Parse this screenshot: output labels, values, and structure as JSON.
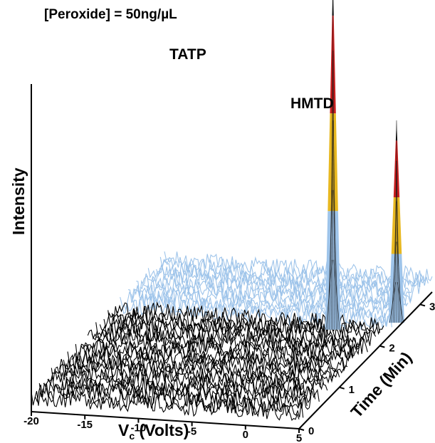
{
  "chart_data": {
    "type": "surface3d",
    "subtitle": "[Peroxide] = 50ng/µL",
    "xlabel_main": "V",
    "xlabel_sub": "c",
    "xlabel_rest": " (Volts)",
    "ylabel": "Time (Min)",
    "zlabel": "Intensity",
    "x_ticks": [
      "-20",
      "-15",
      "-10",
      "-5",
      "0",
      "5"
    ],
    "y_ticks": [
      "0",
      "1",
      "2",
      "3"
    ],
    "xlim": [
      -20,
      5
    ],
    "ylim": [
      0,
      3.3
    ],
    "peaks": [
      {
        "label": "TATP",
        "vc": -0.5,
        "time": 2.3,
        "relative_intensity": 1.0
      },
      {
        "label": "HMTD",
        "vc": 4.5,
        "time": 2.55,
        "relative_intensity": 0.58
      }
    ],
    "noise_level": 0.07,
    "colors": {
      "noise_front": "#000000",
      "noise_back": "#9ec4ea",
      "peak_band_low": "#9ec4ea",
      "peak_band_mid": "#e8b820",
      "peak_band_high": "#c81e1e",
      "peak_tip": "#000000"
    }
  }
}
